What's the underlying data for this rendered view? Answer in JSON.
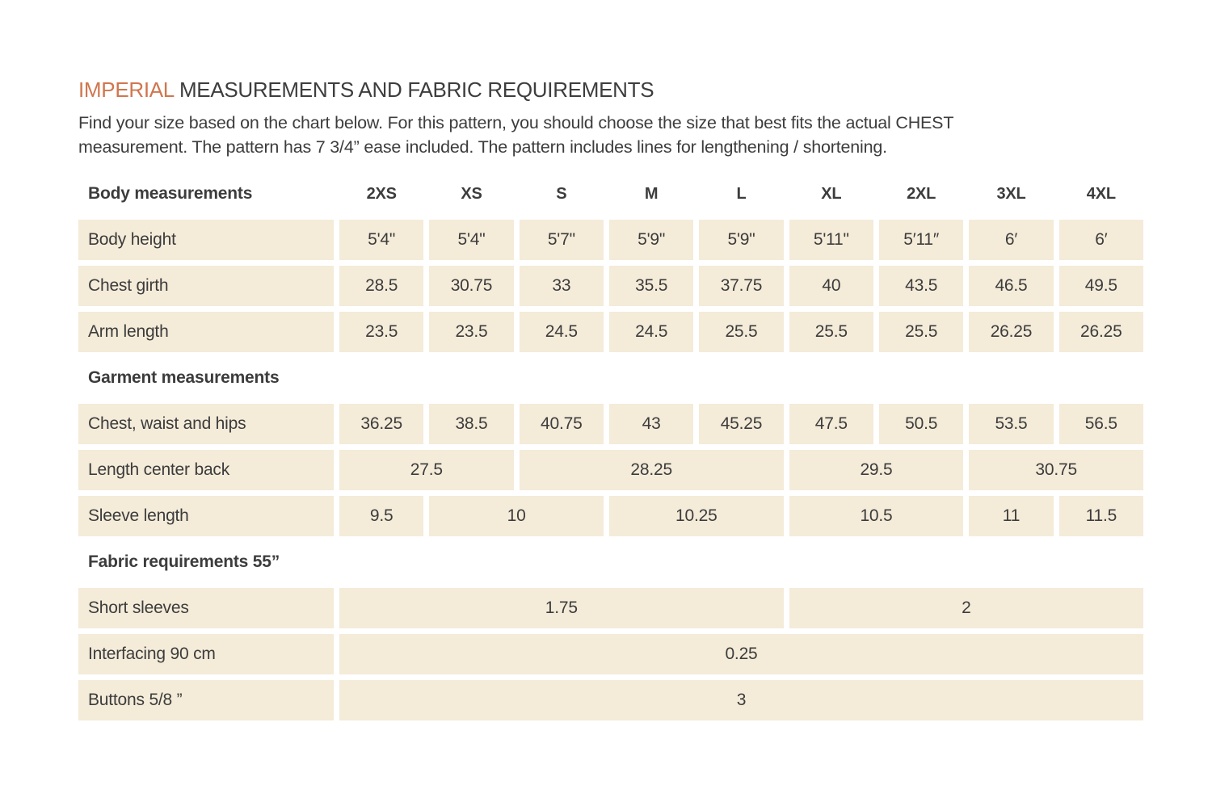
{
  "colors": {
    "accent": "#d0764e",
    "cell_background": "#f4ebd9",
    "text": "#3c3c3c"
  },
  "title": {
    "accent": "IMPERIAL",
    "rest": "MEASUREMENTS AND FABRIC REQUIREMENTS"
  },
  "intro": {
    "line1": "Find your size based on the chart below. For this pattern, you should choose the size that best fits the actual CHEST",
    "line2": "measurement. The pattern has 7 3/4” ease included. The pattern includes lines for lengthening / shortening."
  },
  "table": {
    "header": {
      "label": "Body measurements",
      "sizes": [
        "2XS",
        "XS",
        "S",
        "M",
        "L",
        "XL",
        "2XL",
        "3XL",
        "4XL"
      ]
    },
    "sections": [
      {
        "heading": "",
        "rows": [
          {
            "label": "Body height",
            "cells": [
              [
                "5'4\"",
                1
              ],
              [
                "5'4\"",
                1
              ],
              [
                "5'7\"",
                1
              ],
              [
                "5'9\"",
                1
              ],
              [
                "5'9\"",
                1
              ],
              [
                "5'11\"",
                1
              ],
              [
                "5′11″",
                1
              ],
              [
                "6′",
                1
              ],
              [
                "6′",
                1
              ]
            ]
          },
          {
            "label": "Chest girth",
            "cells": [
              [
                "28.5",
                1
              ],
              [
                "30.75",
                1
              ],
              [
                "33",
                1
              ],
              [
                "35.5",
                1
              ],
              [
                "37.75",
                1
              ],
              [
                "40",
                1
              ],
              [
                "43.5",
                1
              ],
              [
                "46.5",
                1
              ],
              [
                "49.5",
                1
              ]
            ]
          },
          {
            "label": "Arm length",
            "cells": [
              [
                "23.5",
                1
              ],
              [
                "23.5",
                1
              ],
              [
                "24.5",
                1
              ],
              [
                "24.5",
                1
              ],
              [
                "25.5",
                1
              ],
              [
                "25.5",
                1
              ],
              [
                "25.5",
                1
              ],
              [
                "26.25",
                1
              ],
              [
                "26.25",
                1
              ]
            ]
          }
        ]
      },
      {
        "heading": "Garment measurements",
        "rows": [
          {
            "label": "Chest, waist and hips",
            "cells": [
              [
                "36.25",
                1
              ],
              [
                "38.5",
                1
              ],
              [
                "40.75",
                1
              ],
              [
                "43",
                1
              ],
              [
                "45.25",
                1
              ],
              [
                "47.5",
                1
              ],
              [
                "50.5",
                1
              ],
              [
                "53.5",
                1
              ],
              [
                "56.5",
                1
              ]
            ]
          },
          {
            "label": "Length center back",
            "cells": [
              [
                "27.5",
                2
              ],
              [
                "28.25",
                3
              ],
              [
                "29.5",
                2
              ],
              [
                "30.75",
                2
              ]
            ]
          },
          {
            "label": "Sleeve length",
            "cells": [
              [
                "9.5",
                1
              ],
              [
                "10",
                2
              ],
              [
                "10.25",
                2
              ],
              [
                "10.5",
                2
              ],
              [
                "11",
                1
              ],
              [
                "11.5",
                1
              ]
            ]
          }
        ]
      },
      {
        "heading": "Fabric requirements 55”",
        "rows": [
          {
            "label": "Short sleeves",
            "cells": [
              [
                "1.75",
                5
              ],
              [
                "2",
                4
              ]
            ]
          },
          {
            "label": "Interfacing 90 cm",
            "cells": [
              [
                "0.25",
                9
              ]
            ]
          },
          {
            "label": "Buttons 5/8 ”",
            "cells": [
              [
                "3",
                9
              ]
            ]
          }
        ]
      }
    ]
  }
}
